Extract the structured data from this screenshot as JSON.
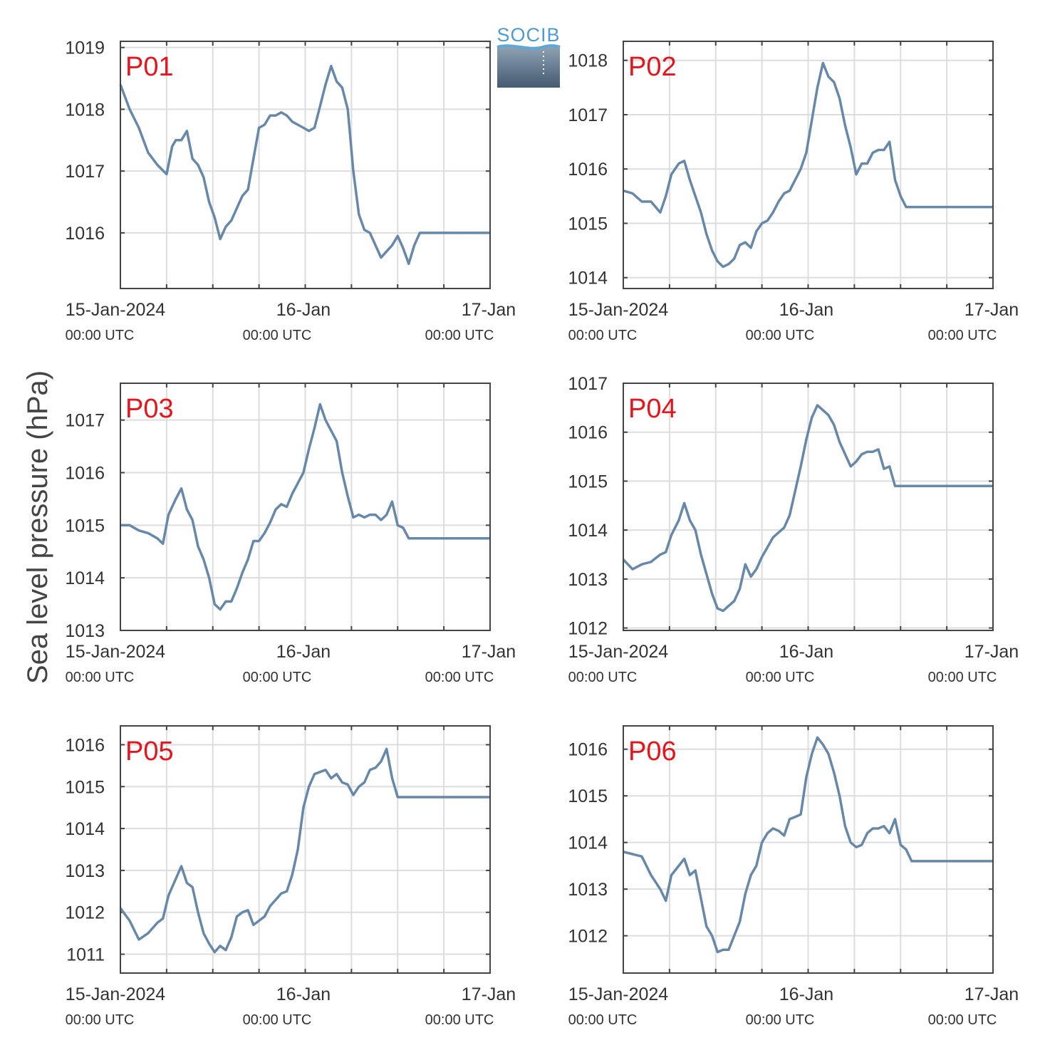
{
  "figure": {
    "ylabel": "Sea level pressure (hPa)",
    "logo_text": "SOCIB",
    "series_color": "#6688aa",
    "label_color": "#e8141c"
  },
  "chart_data": [
    {
      "type": "line",
      "name": "P01",
      "ylim": [
        1015.1,
        1019.1
      ],
      "yticks": [
        1016,
        1017,
        1018,
        1019
      ],
      "x_days": [
        0,
        0.5,
        1,
        1.5,
        2
      ],
      "x_labels": [
        "15-Jan-2024",
        "16-Jan",
        "17-Jan"
      ],
      "x_sublabels": [
        "00:00 UTC",
        "00:00 UTC",
        "00:00 UTC"
      ],
      "series": [
        {
          "x": [
            0,
            0.05,
            0.1,
            0.15,
            0.2,
            0.25,
            0.28,
            0.3,
            0.33,
            0.36,
            0.39,
            0.42,
            0.45,
            0.48,
            0.51,
            0.54,
            0.57,
            0.6,
            0.63,
            0.66,
            0.69,
            0.72,
            0.75,
            0.78,
            0.81,
            0.84,
            0.87,
            0.9,
            0.93,
            0.96,
            0.99,
            1.02,
            1.05,
            1.08,
            1.11,
            1.14,
            1.17,
            1.2,
            1.23,
            1.26,
            1.29,
            1.32,
            1.35,
            1.38,
            1.41,
            1.44,
            1.47,
            1.5,
            1.53,
            1.56,
            1.59,
            1.62,
            1.65,
            1.68,
            1.71,
            1.74,
            1.77,
            1.8,
            1.83,
            1.86,
            1.89,
            1.92,
            1.95,
            1.98,
            2.0
          ],
          "y": [
            1018.4,
            1018.0,
            1017.7,
            1017.3,
            1017.1,
            1016.95,
            1017.4,
            1017.5,
            1017.5,
            1017.65,
            1017.2,
            1017.1,
            1016.9,
            1016.5,
            1016.25,
            1015.9,
            1016.1,
            1016.2,
            1016.4,
            1016.6,
            1016.7,
            1017.2,
            1017.7,
            1017.75,
            1017.9,
            1017.9,
            1017.95,
            1017.9,
            1017.8,
            1017.75,
            1017.7,
            1017.65,
            1017.7,
            1018.05,
            1018.4,
            1018.7,
            1018.45,
            1018.35,
            1018.0,
            1017.0,
            1016.3,
            1016.05,
            1016.0,
            1015.8,
            1015.6,
            1015.7,
            1015.8,
            1015.95,
            1015.75,
            1015.5,
            1015.8,
            1016.0,
            1016.0,
            1016.0,
            1016.0,
            1016.0,
            1016.0,
            1016.0,
            1016.0,
            1016.0,
            1016.0,
            1016.0,
            1016.0,
            1016.0,
            1016.0
          ]
        }
      ]
    },
    {
      "type": "line",
      "name": "P02",
      "ylim": [
        1013.8,
        1018.35
      ],
      "yticks": [
        1014,
        1015,
        1016,
        1017,
        1018
      ],
      "x_days": [
        0,
        0.5,
        1,
        1.5,
        2
      ],
      "x_labels": [
        "15-Jan-2024",
        "16-Jan",
        "17-Jan"
      ],
      "x_sublabels": [
        "00:00 UTC",
        "00:00 UTC",
        "00:00 UTC"
      ],
      "series": [
        {
          "x": [
            0,
            0.05,
            0.1,
            0.15,
            0.2,
            0.23,
            0.26,
            0.3,
            0.33,
            0.36,
            0.39,
            0.42,
            0.45,
            0.48,
            0.51,
            0.54,
            0.57,
            0.6,
            0.63,
            0.66,
            0.69,
            0.72,
            0.75,
            0.78,
            0.81,
            0.84,
            0.87,
            0.9,
            0.93,
            0.96,
            0.99,
            1.02,
            1.05,
            1.08,
            1.11,
            1.14,
            1.17,
            1.2,
            1.23,
            1.26,
            1.29,
            1.32,
            1.35,
            1.38,
            1.41,
            1.44,
            1.47,
            1.5,
            1.53,
            1.56,
            1.59,
            1.62,
            1.65,
            1.68,
            1.71,
            1.74,
            1.77,
            1.8,
            1.83,
            1.86,
            1.89,
            1.92,
            1.95,
            1.98,
            2.0
          ],
          "y": [
            1015.6,
            1015.55,
            1015.4,
            1015.4,
            1015.2,
            1015.5,
            1015.9,
            1016.1,
            1016.15,
            1015.8,
            1015.5,
            1015.2,
            1014.8,
            1014.5,
            1014.3,
            1014.2,
            1014.25,
            1014.35,
            1014.6,
            1014.65,
            1014.55,
            1014.85,
            1015.0,
            1015.05,
            1015.2,
            1015.4,
            1015.55,
            1015.6,
            1015.8,
            1016.0,
            1016.3,
            1016.9,
            1017.5,
            1017.95,
            1017.7,
            1017.6,
            1017.3,
            1016.8,
            1016.4,
            1015.9,
            1016.1,
            1016.1,
            1016.3,
            1016.35,
            1016.35,
            1016.5,
            1015.8,
            1015.5,
            1015.3,
            1015.3,
            1015.3,
            1015.3,
            1015.3,
            1015.3,
            1015.3,
            1015.3,
            1015.3,
            1015.3,
            1015.3,
            1015.3,
            1015.3,
            1015.3,
            1015.3,
            1015.3,
            1015.3
          ]
        }
      ]
    },
    {
      "type": "line",
      "name": "P03",
      "ylim": [
        1013.0,
        1017.7
      ],
      "yticks": [
        1013,
        1014,
        1015,
        1016,
        1017
      ],
      "x_days": [
        0,
        0.5,
        1,
        1.5,
        2
      ],
      "x_labels": [
        "15-Jan-2024",
        "16-Jan",
        "17-Jan"
      ],
      "x_sublabels": [
        "00:00 UTC",
        "00:00 UTC",
        "00:00 UTC"
      ],
      "series": [
        {
          "x": [
            0,
            0.05,
            0.1,
            0.15,
            0.2,
            0.23,
            0.26,
            0.3,
            0.33,
            0.36,
            0.39,
            0.42,
            0.45,
            0.48,
            0.51,
            0.54,
            0.57,
            0.6,
            0.63,
            0.66,
            0.69,
            0.72,
            0.75,
            0.78,
            0.81,
            0.84,
            0.87,
            0.9,
            0.93,
            0.96,
            0.99,
            1.02,
            1.05,
            1.08,
            1.11,
            1.14,
            1.17,
            1.2,
            1.23,
            1.26,
            1.29,
            1.32,
            1.35,
            1.38,
            1.41,
            1.44,
            1.47,
            1.5,
            1.53,
            1.56,
            1.59,
            1.62,
            1.65,
            1.68,
            1.71,
            1.74,
            1.77,
            1.8,
            1.83,
            1.86,
            1.89,
            1.92,
            1.95,
            1.98,
            2.0
          ],
          "y": [
            1015.0,
            1015.0,
            1014.9,
            1014.85,
            1014.75,
            1014.65,
            1015.2,
            1015.5,
            1015.7,
            1015.3,
            1015.1,
            1014.6,
            1014.35,
            1014.0,
            1013.5,
            1013.4,
            1013.55,
            1013.55,
            1013.8,
            1014.1,
            1014.35,
            1014.7,
            1014.7,
            1014.85,
            1015.05,
            1015.3,
            1015.4,
            1015.35,
            1015.6,
            1015.8,
            1016.0,
            1016.45,
            1016.85,
            1017.3,
            1017.0,
            1016.8,
            1016.6,
            1016.0,
            1015.55,
            1015.15,
            1015.2,
            1015.15,
            1015.2,
            1015.2,
            1015.1,
            1015.2,
            1015.45,
            1015.0,
            1014.95,
            1014.75,
            1014.75,
            1014.75,
            1014.75,
            1014.75,
            1014.75,
            1014.75,
            1014.75,
            1014.75,
            1014.75,
            1014.75,
            1014.75,
            1014.75,
            1014.75,
            1014.75,
            1014.75
          ]
        }
      ]
    },
    {
      "type": "line",
      "name": "P04",
      "ylim": [
        1011.95,
        1017.0
      ],
      "yticks": [
        1012,
        1013,
        1014,
        1015,
        1016,
        1017
      ],
      "x_days": [
        0,
        0.5,
        1,
        1.5,
        2
      ],
      "x_labels": [
        "15-Jan-2024",
        "16-Jan",
        "17-Jan"
      ],
      "x_sublabels": [
        "00:00 UTC",
        "00:00 UTC",
        "00:00 UTC"
      ],
      "series": [
        {
          "x": [
            0,
            0.05,
            0.1,
            0.15,
            0.2,
            0.23,
            0.26,
            0.3,
            0.33,
            0.36,
            0.39,
            0.42,
            0.45,
            0.48,
            0.51,
            0.54,
            0.57,
            0.6,
            0.63,
            0.66,
            0.69,
            0.72,
            0.75,
            0.78,
            0.81,
            0.84,
            0.87,
            0.9,
            0.93,
            0.96,
            0.99,
            1.02,
            1.05,
            1.08,
            1.11,
            1.14,
            1.17,
            1.2,
            1.23,
            1.26,
            1.29,
            1.32,
            1.35,
            1.38,
            1.41,
            1.44,
            1.47,
            1.5,
            1.53,
            1.56,
            1.59,
            1.62,
            1.65,
            1.68,
            1.71,
            1.74,
            1.77,
            1.8,
            1.83,
            1.86,
            1.89,
            1.92,
            1.95,
            1.98,
            2.0
          ],
          "y": [
            1013.4,
            1013.2,
            1013.3,
            1013.35,
            1013.5,
            1013.55,
            1013.9,
            1014.2,
            1014.55,
            1014.2,
            1014.0,
            1013.5,
            1013.1,
            1012.7,
            1012.4,
            1012.35,
            1012.45,
            1012.55,
            1012.8,
            1013.3,
            1013.05,
            1013.2,
            1013.45,
            1013.65,
            1013.85,
            1013.95,
            1014.05,
            1014.3,
            1014.8,
            1015.3,
            1015.85,
            1016.3,
            1016.55,
            1016.45,
            1016.35,
            1016.15,
            1015.8,
            1015.55,
            1015.3,
            1015.4,
            1015.55,
            1015.6,
            1015.6,
            1015.65,
            1015.25,
            1015.3,
            1014.9,
            1014.9,
            1014.9,
            1014.9,
            1014.9,
            1014.9,
            1014.9,
            1014.9,
            1014.9,
            1014.9,
            1014.9,
            1014.9,
            1014.9,
            1014.9,
            1014.9,
            1014.9,
            1014.9,
            1014.9,
            1014.9
          ]
        }
      ]
    },
    {
      "type": "line",
      "name": "P05",
      "ylim": [
        1010.55,
        1016.45
      ],
      "yticks": [
        1011,
        1012,
        1013,
        1014,
        1015,
        1016
      ],
      "x_days": [
        0,
        0.5,
        1,
        1.5,
        2
      ],
      "x_labels": [
        "15-Jan-2024",
        "16-Jan",
        "17-Jan"
      ],
      "x_sublabels": [
        "00:00 UTC",
        "00:00 UTC",
        "00:00 UTC"
      ],
      "series": [
        {
          "x": [
            0,
            0.05,
            0.1,
            0.15,
            0.2,
            0.23,
            0.26,
            0.3,
            0.33,
            0.36,
            0.39,
            0.42,
            0.45,
            0.48,
            0.51,
            0.54,
            0.57,
            0.6,
            0.63,
            0.66,
            0.69,
            0.72,
            0.75,
            0.78,
            0.81,
            0.84,
            0.87,
            0.9,
            0.93,
            0.96,
            0.99,
            1.02,
            1.05,
            1.08,
            1.11,
            1.14,
            1.17,
            1.2,
            1.23,
            1.26,
            1.29,
            1.32,
            1.35,
            1.38,
            1.41,
            1.44,
            1.47,
            1.5,
            1.53,
            1.56,
            1.59,
            1.62,
            1.65,
            1.68,
            1.71,
            1.74,
            1.77,
            1.8,
            1.83,
            1.86,
            1.89,
            1.92,
            1.95,
            1.98,
            2.0
          ],
          "y": [
            1012.1,
            1011.8,
            1011.35,
            1011.5,
            1011.75,
            1011.85,
            1012.4,
            1012.8,
            1013.1,
            1012.7,
            1012.6,
            1012.0,
            1011.5,
            1011.25,
            1011.05,
            1011.2,
            1011.1,
            1011.4,
            1011.9,
            1012.0,
            1012.05,
            1011.7,
            1011.8,
            1011.9,
            1012.15,
            1012.3,
            1012.45,
            1012.5,
            1012.9,
            1013.5,
            1014.5,
            1015.0,
            1015.3,
            1015.35,
            1015.4,
            1015.2,
            1015.3,
            1015.1,
            1015.05,
            1014.8,
            1015.0,
            1015.1,
            1015.4,
            1015.45,
            1015.6,
            1015.9,
            1015.2,
            1014.75,
            1014.75,
            1014.75,
            1014.75,
            1014.75,
            1014.75,
            1014.75,
            1014.75,
            1014.75,
            1014.75,
            1014.75,
            1014.75,
            1014.75,
            1014.75,
            1014.75,
            1014.75,
            1014.75,
            1014.75
          ]
        }
      ]
    },
    {
      "type": "line",
      "name": "P06",
      "ylim": [
        1011.2,
        1016.5
      ],
      "yticks": [
        1012,
        1013,
        1014,
        1015,
        1016
      ],
      "x_days": [
        0,
        0.5,
        1,
        1.5,
        2
      ],
      "x_labels": [
        "15-Jan-2024",
        "16-Jan",
        "17-Jan"
      ],
      "x_sublabels": [
        "00:00 UTC",
        "00:00 UTC",
        "00:00 UTC"
      ],
      "series": [
        {
          "x": [
            0,
            0.05,
            0.1,
            0.15,
            0.2,
            0.23,
            0.26,
            0.3,
            0.33,
            0.36,
            0.39,
            0.42,
            0.45,
            0.48,
            0.51,
            0.54,
            0.57,
            0.6,
            0.63,
            0.66,
            0.69,
            0.72,
            0.75,
            0.78,
            0.81,
            0.84,
            0.87,
            0.9,
            0.93,
            0.96,
            0.99,
            1.02,
            1.05,
            1.08,
            1.11,
            1.14,
            1.17,
            1.2,
            1.23,
            1.26,
            1.29,
            1.32,
            1.35,
            1.38,
            1.41,
            1.44,
            1.47,
            1.5,
            1.53,
            1.56,
            1.59,
            1.62,
            1.65,
            1.68,
            1.71,
            1.74,
            1.77,
            1.8,
            1.83,
            1.86,
            1.89,
            1.92,
            1.95,
            1.98,
            2.0
          ],
          "y": [
            1013.8,
            1013.75,
            1013.7,
            1013.3,
            1013.0,
            1012.75,
            1013.3,
            1013.5,
            1013.65,
            1013.3,
            1013.4,
            1012.8,
            1012.2,
            1012.0,
            1011.65,
            1011.7,
            1011.7,
            1012.0,
            1012.3,
            1012.9,
            1013.3,
            1013.5,
            1014.0,
            1014.2,
            1014.3,
            1014.25,
            1014.15,
            1014.5,
            1014.55,
            1014.6,
            1015.4,
            1015.9,
            1016.25,
            1016.1,
            1015.9,
            1015.5,
            1015.0,
            1014.35,
            1014.0,
            1013.9,
            1013.95,
            1014.2,
            1014.3,
            1014.3,
            1014.35,
            1014.2,
            1014.5,
            1013.95,
            1013.85,
            1013.6,
            1013.6,
            1013.6,
            1013.6,
            1013.6,
            1013.6,
            1013.6,
            1013.6,
            1013.6,
            1013.6,
            1013.6,
            1013.6,
            1013.6,
            1013.6,
            1013.6,
            1013.6
          ]
        }
      ]
    }
  ]
}
